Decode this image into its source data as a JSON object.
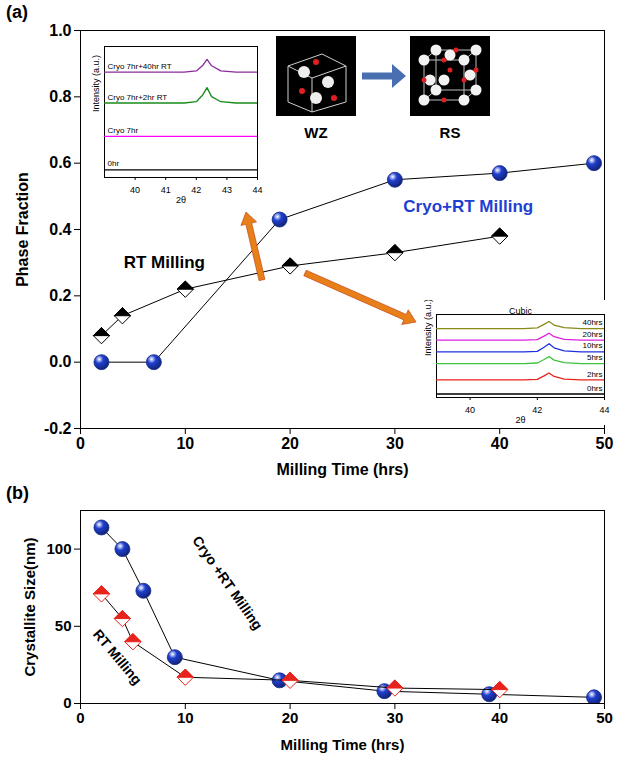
{
  "chart_data": [
    {
      "type": "line",
      "panel_label": "(a)",
      "xlabel": "Milling Time (hrs)",
      "ylabel": "Phase Fraction",
      "xlim": [
        0,
        50
      ],
      "xticks": [
        0,
        10,
        20,
        30,
        40,
        50
      ],
      "ylim": [
        -0.2,
        1.0
      ],
      "yticks": [
        -0.2,
        {
          "value": 0,
          "label": "0.0"
        },
        0.2,
        0.4,
        0.6,
        0.8,
        {
          "value": 1,
          "label": "1.0"
        }
      ],
      "structure_labels": [
        "WZ",
        "RS"
      ],
      "series": [
        {
          "name": "RT Milling",
          "color": "#000000",
          "marker": "half-filled diamond",
          "x": [
            2,
            4,
            10,
            20,
            30,
            40
          ],
          "values": [
            0.08,
            0.14,
            0.22,
            0.29,
            0.33,
            0.38
          ]
        },
        {
          "name": "Cryo+RT Milling",
          "color": "#1f3fd1",
          "marker": "sphere",
          "x": [
            2,
            7,
            19,
            30,
            40,
            49
          ],
          "values": [
            0,
            0,
            0.43,
            0.55,
            0.57,
            0.6
          ]
        }
      ]
    },
    {
      "type": "line",
      "xlabel": "2θ",
      "ylabel": "Intensity (a.u.)",
      "xlim": [
        39,
        44
      ],
      "xticks": [
        40,
        41,
        42,
        43,
        44
      ],
      "ylim": [
        -0.3,
        4.8
      ],
      "tick_labels": "x",
      "x": [
        39,
        41.6,
        42.0,
        42.2,
        42.35,
        42.5,
        42.8,
        43.3,
        44
      ],
      "series": [
        {
          "name": "0hr",
          "color": "#000000",
          "values": [
            0,
            0,
            0,
            0,
            0,
            0,
            0,
            0,
            0
          ]
        },
        {
          "name": "Cryo 7hr",
          "color": "#ff00ff",
          "values": [
            1.3,
            1.3,
            1.3,
            1.3,
            1.3,
            1.3,
            1.3,
            1.3,
            1.3
          ]
        },
        {
          "name": "Cryo 7hr+2hr RT",
          "color": "#1a8a1a",
          "values": [
            2.6,
            2.6,
            2.65,
            2.9,
            3.2,
            2.85,
            2.65,
            2.6,
            2.6
          ]
        },
        {
          "name": "Cryo 7hr+40hr RT",
          "color": "#8b2a9b",
          "values": [
            3.8,
            3.8,
            3.85,
            4.05,
            4.3,
            4.05,
            3.85,
            3.8,
            3.8
          ]
        }
      ]
    },
    {
      "type": "line",
      "xlabel": "2θ",
      "ylabel": "Intensity (a.u.)",
      "xlim": [
        39,
        44
      ],
      "xticks": [
        40,
        42,
        44
      ],
      "ylim": [
        -0.3,
        6.8
      ],
      "tick_labels": "x",
      "annotations": [
        {
          "text": "Cubic"
        }
      ],
      "x": [
        39,
        41.6,
        42.0,
        42.2,
        42.35,
        42.5,
        42.8,
        43.3,
        44
      ],
      "series": [
        {
          "name": "0hrs",
          "color": "#000000",
          "values": [
            0,
            0,
            0,
            0,
            0,
            0,
            0,
            0,
            0
          ]
        },
        {
          "name": "2hrs",
          "color": "#e8221c",
          "values": [
            1.2,
            1.2,
            1.25,
            1.55,
            1.8,
            1.5,
            1.28,
            1.2,
            1.2
          ]
        },
        {
          "name": "5hrs",
          "color": "#3fc23f",
          "values": [
            2.6,
            2.6,
            2.65,
            2.95,
            3.2,
            2.9,
            2.68,
            2.6,
            2.6
          ]
        },
        {
          "name": "10hrs",
          "color": "#2030e0",
          "values": [
            3.6,
            3.6,
            3.65,
            4.0,
            4.3,
            3.95,
            3.68,
            3.6,
            3.6
          ]
        },
        {
          "name": "20hrs",
          "color": "#e020e0",
          "values": [
            4.6,
            4.6,
            4.65,
            4.95,
            5.2,
            4.9,
            4.68,
            4.6,
            4.6
          ]
        },
        {
          "name": "40hrs",
          "color": "#8a8a1a",
          "values": [
            5.6,
            5.6,
            5.65,
            5.95,
            6.2,
            5.9,
            5.68,
            5.6,
            5.6
          ]
        }
      ]
    },
    {
      "type": "line",
      "panel_label": "(b)",
      "xlabel": "Milling Time (hrs)",
      "ylabel": "Crystallite Size(nm)",
      "xlim": [
        0,
        50
      ],
      "xticks": [
        0,
        10,
        20,
        30,
        40,
        50
      ],
      "ylim": [
        0,
        125
      ],
      "yticks": [
        0,
        50,
        100
      ],
      "series": [
        {
          "name": "Cryo +RT Milling",
          "color": "#1f3fd1",
          "marker": "sphere",
          "x": [
            2,
            4,
            6,
            9,
            19,
            29,
            39,
            49
          ],
          "values": [
            114,
            100,
            73,
            30,
            15,
            8,
            6,
            4
          ]
        },
        {
          "name": "RT Milling",
          "color": "#e8221c",
          "marker": "half-filled diamond",
          "x": [
            2,
            4,
            5,
            10,
            20,
            30,
            40
          ],
          "values": [
            71,
            55,
            40,
            17,
            15,
            10,
            9
          ]
        }
      ]
    }
  ]
}
